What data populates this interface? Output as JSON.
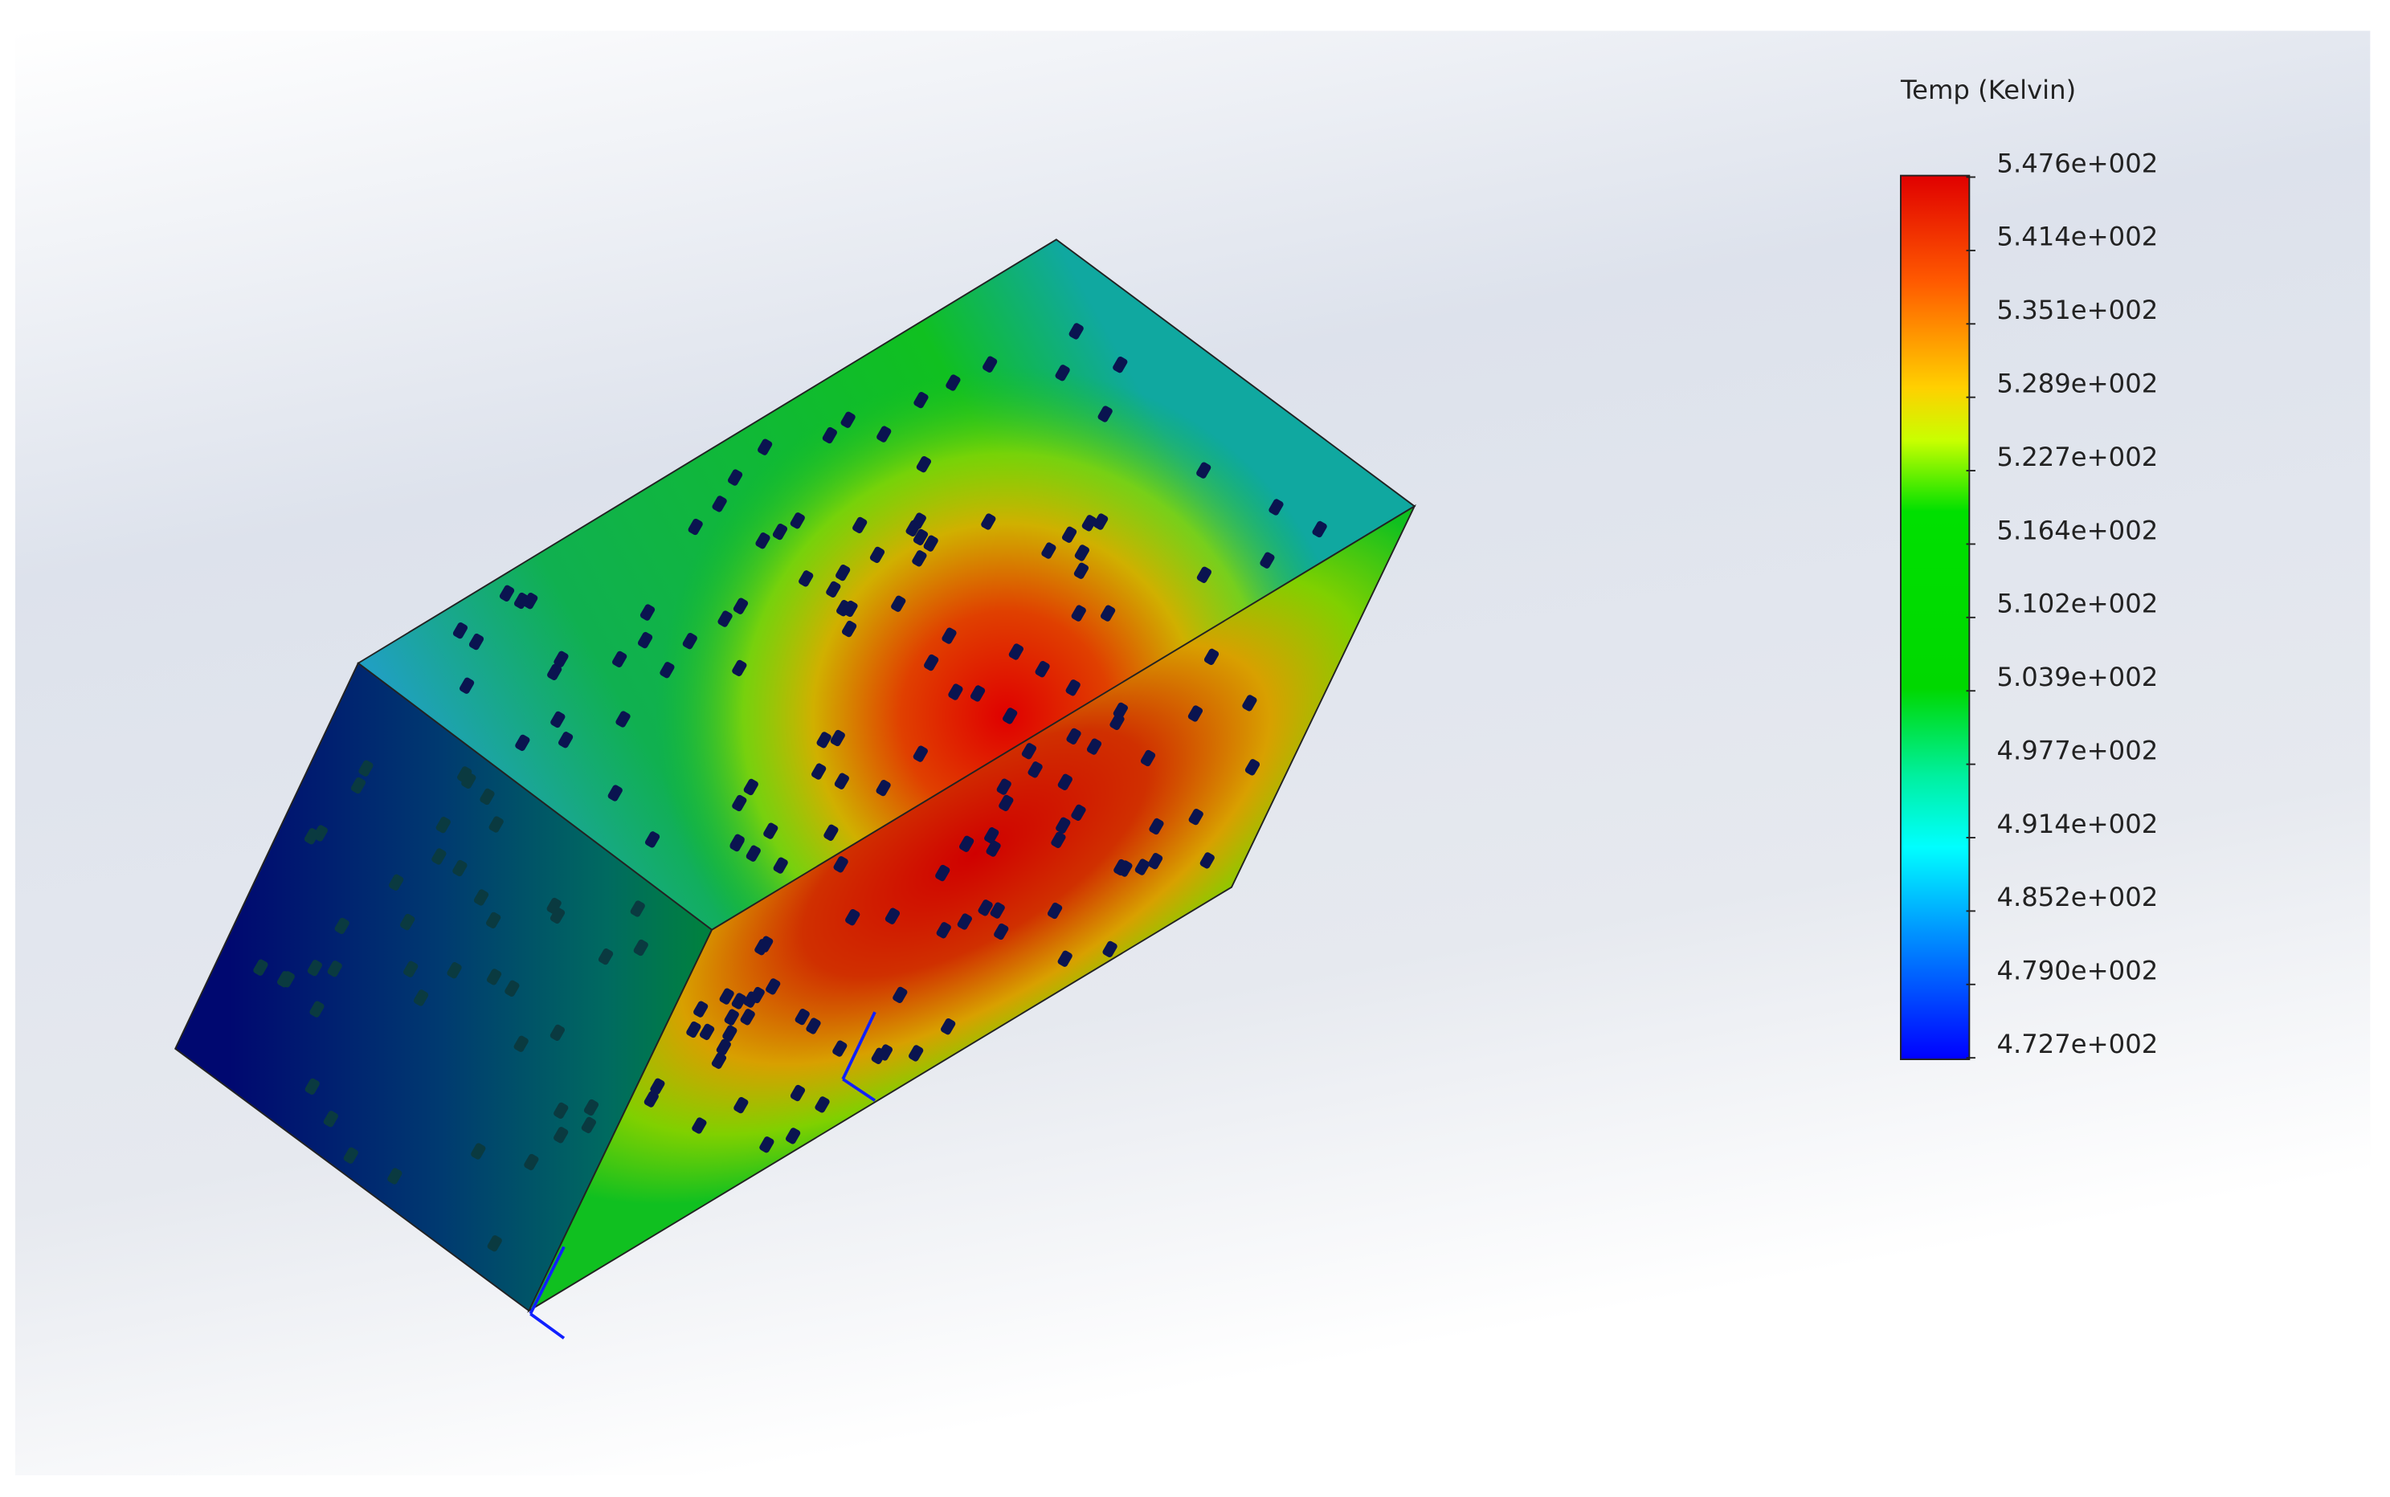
{
  "legend": {
    "title": "Temp (Kelvin)",
    "labels": [
      "5.476e+002",
      "5.414e+002",
      "5.351e+002",
      "5.289e+002",
      "5.227e+002",
      "5.164e+002",
      "5.102e+002",
      "5.039e+002",
      "4.977e+002",
      "4.914e+002",
      "4.852e+002",
      "4.790e+002",
      "4.727e+002"
    ]
  }
}
